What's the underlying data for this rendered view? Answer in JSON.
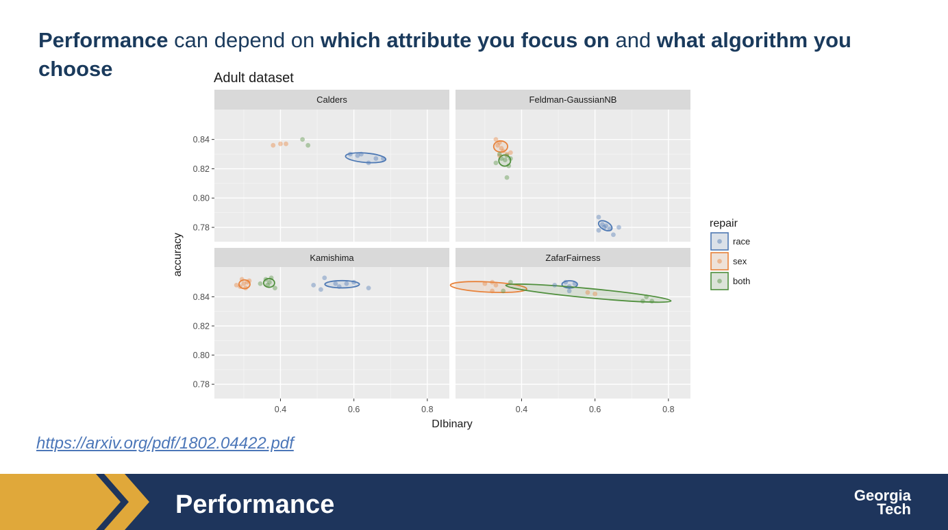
{
  "headline": {
    "p1_bold": "Performance",
    "p2": " can depend on ",
    "p3_bold": "which attribute you focus on",
    "p4": " and ",
    "p5_bold": "what algorithm you choose"
  },
  "link_text": "https://arxiv.org/pdf/1802.04422.pdf",
  "footer": {
    "title": "Performance",
    "logo_line1": "Georgia",
    "logo_line2": "Tech"
  },
  "colors": {
    "race": "#4e79b4",
    "sex": "#e8823a",
    "both": "#4f8f3c",
    "footer_bg": "#1e355c",
    "chevron": "#e0a83a"
  },
  "chart_data": {
    "type": "scatter",
    "title": "Adult dataset",
    "xlabel": "DIbinary",
    "ylabel": "accuracy",
    "xlim": [
      0.22,
      0.86
    ],
    "ylim_top": [
      0.7702,
      0.8604
    ],
    "ylim_bottom": [
      0.7702,
      0.8604
    ],
    "xticks": [
      0.4,
      0.6,
      0.8
    ],
    "xtick_labels": [
      "0.4",
      "0.6",
      "0.8"
    ],
    "yticks_top": [
      0.78,
      0.8,
      0.82,
      0.84
    ],
    "ytick_labels_top": [
      "0.78",
      "0.80",
      "0.82",
      "0.84"
    ],
    "yticks_bottom": [
      0.78,
      0.8,
      0.82,
      0.84
    ],
    "ytick_labels_bottom": [
      "0.78",
      "0.80",
      "0.82",
      "0.84"
    ],
    "legend": {
      "title": "repair",
      "items": [
        "race",
        "sex",
        "both"
      ],
      "position": "right"
    },
    "panels": [
      {
        "name": "Calders",
        "position": "top-left",
        "points": {
          "race": [
            [
              0.59,
              0.83
            ],
            [
              0.61,
              0.829
            ],
            [
              0.62,
              0.83
            ],
            [
              0.64,
              0.824
            ],
            [
              0.66,
              0.827
            ],
            [
              0.68,
              0.827
            ]
          ],
          "sex": [
            [
              0.38,
              0.836
            ],
            [
              0.4,
              0.837
            ],
            [
              0.415,
              0.837
            ]
          ],
          "both": [
            [
              0.46,
              0.84
            ],
            [
              0.475,
              0.836
            ]
          ]
        },
        "ellipses": [
          {
            "group": "race",
            "cx": 0.632,
            "cy": 0.8275,
            "rx": 0.055,
            "ry": 0.0032,
            "angle": -0.08
          }
        ]
      },
      {
        "name": "Feldman-GaussianNB",
        "position": "top-right",
        "points": {
          "race": [
            [
              0.61,
              0.787
            ],
            [
              0.62,
              0.782
            ],
            [
              0.625,
              0.78
            ],
            [
              0.63,
              0.781
            ],
            [
              0.64,
              0.779
            ],
            [
              0.65,
              0.775
            ],
            [
              0.665,
              0.78
            ],
            [
              0.61,
              0.778
            ]
          ],
          "sex": [
            [
              0.33,
              0.84
            ],
            [
              0.335,
              0.836
            ],
            [
              0.34,
              0.838
            ],
            [
              0.345,
              0.834
            ],
            [
              0.35,
              0.832
            ],
            [
              0.36,
              0.83
            ],
            [
              0.37,
              0.831
            ],
            [
              0.34,
              0.829
            ]
          ],
          "both": [
            [
              0.33,
              0.824
            ],
            [
              0.345,
              0.827
            ],
            [
              0.355,
              0.826
            ],
            [
              0.36,
              0.829
            ],
            [
              0.365,
              0.822
            ],
            [
              0.37,
              0.827
            ],
            [
              0.36,
              0.814
            ],
            [
              0.34,
              0.83
            ]
          ]
        },
        "ellipses": [
          {
            "group": "race",
            "cx": 0.628,
            "cy": 0.7811,
            "rx": 0.02,
            "ry": 0.0028,
            "angle": -0.5
          },
          {
            "group": "sex",
            "cx": 0.343,
            "cy": 0.8352,
            "rx": 0.019,
            "ry": 0.0038,
            "angle": 0
          },
          {
            "group": "both",
            "cx": 0.354,
            "cy": 0.8256,
            "rx": 0.016,
            "ry": 0.0038,
            "angle": 0
          }
        ]
      },
      {
        "name": "Kamishima",
        "position": "bottom-left",
        "points": {
          "race": [
            [
              0.49,
              0.848
            ],
            [
              0.51,
              0.845
            ],
            [
              0.52,
              0.853
            ],
            [
              0.55,
              0.849
            ],
            [
              0.58,
              0.849
            ],
            [
              0.6,
              0.85
            ],
            [
              0.64,
              0.846
            ],
            [
              0.56,
              0.847
            ]
          ],
          "sex": [
            [
              0.28,
              0.848
            ],
            [
              0.295,
              0.852
            ],
            [
              0.3,
              0.849
            ],
            [
              0.31,
              0.85
            ],
            [
              0.305,
              0.846
            ],
            [
              0.29,
              0.847
            ],
            [
              0.315,
              0.851
            ]
          ],
          "both": [
            [
              0.345,
              0.849
            ],
            [
              0.36,
              0.852
            ],
            [
              0.37,
              0.85
            ],
            [
              0.375,
              0.853
            ],
            [
              0.385,
              0.846
            ],
            [
              0.365,
              0.848
            ]
          ]
        },
        "ellipses": [
          {
            "group": "race",
            "cx": 0.568,
            "cy": 0.8486,
            "rx": 0.047,
            "ry": 0.0025,
            "angle": 0
          },
          {
            "group": "sex",
            "cx": 0.302,
            "cy": 0.8486,
            "rx": 0.015,
            "ry": 0.003,
            "angle": 0
          },
          {
            "group": "both",
            "cx": 0.369,
            "cy": 0.8495,
            "rx": 0.015,
            "ry": 0.003,
            "angle": 0
          }
        ]
      },
      {
        "name": "ZafarFairness",
        "position": "bottom-right",
        "points": {
          "race": [
            [
              0.49,
              0.848
            ],
            [
              0.52,
              0.85
            ],
            [
              0.53,
              0.847
            ],
            [
              0.53,
              0.844
            ],
            [
              0.545,
              0.849
            ]
          ],
          "sex": [
            [
              0.3,
              0.849
            ],
            [
              0.32,
              0.844
            ],
            [
              0.32,
              0.85
            ],
            [
              0.33,
              0.848
            ],
            [
              0.58,
              0.843
            ],
            [
              0.6,
              0.842
            ]
          ],
          "both": [
            [
              0.35,
              0.844
            ],
            [
              0.37,
              0.85
            ],
            [
              0.73,
              0.837
            ],
            [
              0.74,
              0.84
            ],
            [
              0.755,
              0.837
            ]
          ]
        },
        "ellipses": [
          {
            "group": "race",
            "cx": 0.531,
            "cy": 0.8485,
            "rx": 0.021,
            "ry": 0.0025,
            "angle": 0
          },
          {
            "group": "sex",
            "cx": 0.31,
            "cy": 0.8467,
            "rx": 0.104,
            "ry": 0.0035,
            "angle": -0.05
          },
          {
            "group": "both",
            "cx": 0.582,
            "cy": 0.8425,
            "rx": 0.226,
            "ry": 0.0032,
            "angle": -0.094
          }
        ]
      }
    ]
  }
}
